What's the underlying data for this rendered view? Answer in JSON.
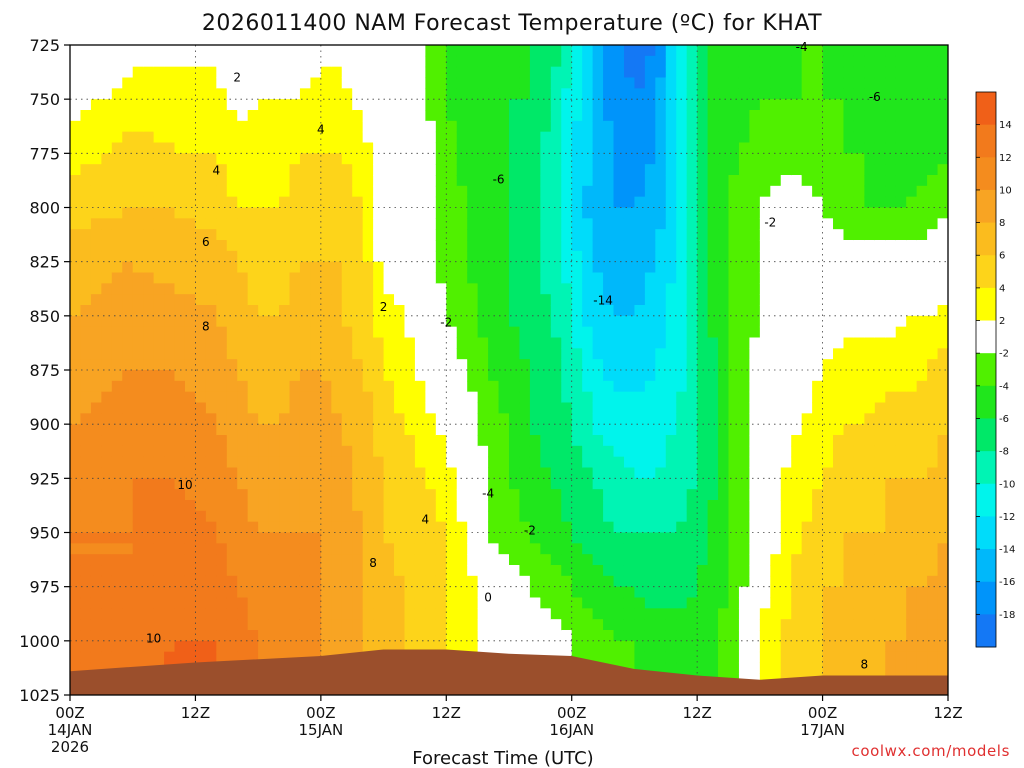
{
  "chart_data": {
    "type": "heatmap",
    "title": "2026011400 NAM Forecast Temperature (ºC) for KHAT",
    "xlabel": "Forecast Time (UTC)",
    "ylabel": "",
    "x_ticks": [
      {
        "hours": 0,
        "label": "00Z",
        "date": "14JAN",
        "year": "2026"
      },
      {
        "hours": 12,
        "label": "12Z",
        "date": "",
        "year": ""
      },
      {
        "hours": 24,
        "label": "00Z",
        "date": "15JAN",
        "year": ""
      },
      {
        "hours": 36,
        "label": "12Z",
        "date": "",
        "year": ""
      },
      {
        "hours": 48,
        "label": "00Z",
        "date": "16JAN",
        "year": ""
      },
      {
        "hours": 60,
        "label": "12Z",
        "date": "",
        "year": ""
      },
      {
        "hours": 72,
        "label": "00Z",
        "date": "17JAN",
        "year": ""
      },
      {
        "hours": 84,
        "label": "12Z",
        "date": "",
        "year": ""
      }
    ],
    "xlim": [
      0,
      84
    ],
    "y_ticks": [
      725,
      750,
      775,
      800,
      825,
      850,
      875,
      900,
      925,
      950,
      975,
      1000,
      1025
    ],
    "ylim": [
      1025,
      725
    ],
    "grid": true,
    "colorbar": {
      "ticks": [
        14,
        12,
        10,
        8,
        6,
        4,
        2,
        -2,
        -4,
        -6,
        -8,
        -10,
        -12,
        -14,
        -16,
        -18
      ],
      "bins": [
        {
          "lo": 14,
          "hi": 16,
          "color": "#f06018"
        },
        {
          "lo": 12,
          "hi": 14,
          "color": "#f27a1c"
        },
        {
          "lo": 10,
          "hi": 12,
          "color": "#f48c1e"
        },
        {
          "lo": 8,
          "hi": 10,
          "color": "#f8a423"
        },
        {
          "lo": 6,
          "hi": 8,
          "color": "#fbbc1e"
        },
        {
          "lo": 4,
          "hi": 6,
          "color": "#fdd41a"
        },
        {
          "lo": 2,
          "hi": 4,
          "color": "#ffff00"
        },
        {
          "lo": -2,
          "hi": 2,
          "color": "#ffffff"
        },
        {
          "lo": -4,
          "hi": -2,
          "color": "#50f000"
        },
        {
          "lo": -6,
          "hi": -4,
          "color": "#20e61c"
        },
        {
          "lo": -8,
          "hi": -6,
          "color": "#00e868"
        },
        {
          "lo": -10,
          "hi": -8,
          "color": "#00f4b4"
        },
        {
          "lo": -12,
          "hi": -10,
          "color": "#00f4ec"
        },
        {
          "lo": -14,
          "hi": -12,
          "color": "#00dcfa"
        },
        {
          "lo": -16,
          "hi": -14,
          "color": "#00b8fa"
        },
        {
          "lo": -18,
          "hi": -16,
          "color": "#0094fa"
        },
        {
          "lo": -20,
          "hi": -18,
          "color": "#1478f5"
        }
      ]
    },
    "series": [
      {
        "time_hours": [
          0,
          6,
          10,
          14,
          16,
          18,
          20,
          22,
          24,
          26,
          28,
          30,
          32,
          34,
          36,
          38,
          40,
          42,
          44,
          46,
          48,
          50,
          52,
          54,
          56,
          58,
          60,
          62,
          64,
          66,
          68,
          70,
          72,
          74,
          76,
          78,
          80,
          82,
          84
        ],
        "note": ""
      }
    ],
    "profiles": [
      {
        "time": 0,
        "temps": [
          -1,
          1,
          3,
          5,
          7,
          8,
          9,
          10,
          11,
          12,
          12,
          13,
          13
        ]
      },
      {
        "time": 6,
        "temps": [
          1,
          3,
          5,
          6,
          8,
          9,
          10,
          11,
          12,
          12,
          12,
          13,
          13
        ]
      },
      {
        "time": 10,
        "temps": [
          1,
          3,
          4,
          6,
          7,
          9,
          10,
          11,
          12,
          13,
          13,
          14,
          15
        ]
      },
      {
        "time": 14,
        "temps": [
          1,
          3,
          4,
          5,
          7,
          8,
          9,
          10,
          11,
          12,
          13,
          14,
          15
        ]
      },
      {
        "time": 16,
        "temps": [
          0,
          1,
          3,
          4,
          6,
          7,
          8,
          9,
          10,
          11,
          12,
          13,
          13
        ]
      },
      {
        "time": 18,
        "temps": [
          0,
          2,
          3,
          4,
          5,
          6,
          7,
          8,
          9,
          10,
          11,
          12,
          12
        ]
      },
      {
        "time": 20,
        "temps": [
          0,
          2,
          3,
          4,
          5,
          6,
          7,
          8,
          9,
          10,
          11,
          11,
          11
        ]
      },
      {
        "time": 22,
        "temps": [
          1,
          2,
          4,
          5,
          6,
          7,
          8,
          9,
          10,
          10,
          11,
          11,
          11
        ]
      },
      {
        "time": 24,
        "temps": [
          1,
          3,
          4,
          5,
          6,
          7,
          8,
          9,
          9,
          10,
          10,
          10,
          10
        ]
      },
      {
        "time": 26,
        "temps": [
          1,
          3,
          4,
          5,
          6,
          6,
          7,
          8,
          9,
          9,
          9,
          9,
          9
        ]
      },
      {
        "time": 28,
        "temps": [
          0,
          1,
          3,
          4,
          5,
          5,
          6,
          7,
          7,
          8,
          8,
          8,
          8
        ]
      },
      {
        "time": 30,
        "temps": [
          -1,
          0,
          0,
          1,
          1,
          3,
          4,
          5,
          6,
          6,
          7,
          7,
          7
        ]
      },
      {
        "time": 32,
        "temps": [
          -2,
          -1,
          0,
          0,
          0,
          2,
          3,
          4,
          5,
          5,
          6,
          6,
          6
        ]
      },
      {
        "time": 34,
        "temps": [
          -2,
          -2,
          -1,
          -1,
          -1,
          0,
          1,
          3,
          4,
          5,
          5,
          5,
          5
        ]
      },
      {
        "time": 36,
        "temps": [
          -4,
          -4,
          -3,
          -3,
          -3,
          -2,
          -1,
          1,
          3,
          4,
          4,
          4,
          4
        ]
      },
      {
        "time": 38,
        "temps": [
          -5,
          -5,
          -5,
          -4,
          -4,
          -3,
          -2,
          -1,
          0,
          2,
          3,
          3,
          3
        ]
      },
      {
        "time": 40,
        "temps": [
          -5,
          -5,
          -6,
          -5,
          -5,
          -5,
          -4,
          -3,
          -2,
          -2,
          0,
          1,
          1
        ]
      },
      {
        "time": 42,
        "temps": [
          -5,
          -6,
          -6,
          -6,
          -6,
          -6,
          -5,
          -4,
          -4,
          -3,
          -1,
          0,
          0
        ]
      },
      {
        "time": 44,
        "temps": [
          -6,
          -6,
          -7,
          -7,
          -7,
          -7,
          -6,
          -6,
          -5,
          -4,
          -2,
          0,
          0
        ]
      },
      {
        "time": 46,
        "temps": [
          -7,
          -8,
          -9,
          -9,
          -9,
          -8,
          -7,
          -7,
          -6,
          -5,
          -3,
          -1,
          -1
        ]
      },
      {
        "time": 48,
        "temps": [
          -9,
          -11,
          -12,
          -12,
          -11,
          -10,
          -9,
          -8,
          -7,
          -6,
          -4,
          -2,
          -2
        ]
      },
      {
        "time": 50,
        "temps": [
          -13,
          -14,
          -14,
          -15,
          -14,
          -13,
          -11,
          -10,
          -8,
          -7,
          -5,
          -3,
          -3
        ]
      },
      {
        "time": 52,
        "temps": [
          -17,
          -17,
          -16,
          -16,
          -15,
          -14,
          -13,
          -11,
          -9,
          -8,
          -6,
          -4,
          -4
        ]
      },
      {
        "time": 54,
        "temps": [
          -19,
          -18,
          -17,
          -16,
          -15,
          -14,
          -13,
          -11,
          -10,
          -8,
          -6,
          -4,
          -4
        ]
      },
      {
        "time": 56,
        "temps": [
          -18,
          -17,
          -16,
          -15,
          -14,
          -13,
          -12,
          -11,
          -10,
          -8,
          -7,
          -5,
          -5
        ]
      },
      {
        "time": 58,
        "temps": [
          -12,
          -12,
          -12,
          -12,
          -12,
          -11,
          -11,
          -10,
          -9,
          -8,
          -7,
          -5,
          -5
        ]
      },
      {
        "time": 60,
        "temps": [
          -7,
          -7,
          -8,
          -8,
          -8,
          -8,
          -8,
          -8,
          -8,
          -7,
          -6,
          -5,
          -5
        ]
      },
      {
        "time": 62,
        "temps": [
          -5,
          -5,
          -5,
          -5,
          -5,
          -5,
          -6,
          -6,
          -6,
          -5,
          -5,
          -4,
          -4
        ]
      },
      {
        "time": 64,
        "temps": [
          -5,
          -5,
          -4,
          -3,
          -3,
          -3,
          -3,
          -3,
          -3,
          -3,
          -3,
          -2,
          -2
        ]
      },
      {
        "time": 66,
        "temps": [
          -5,
          -4,
          -3,
          -2,
          -2,
          -2,
          -1,
          -1,
          0,
          0,
          1,
          2,
          2
        ]
      },
      {
        "time": 68,
        "temps": [
          -5,
          -4,
          -3,
          -1,
          -1,
          0,
          0,
          1,
          2,
          2,
          3,
          4,
          4
        ]
      },
      {
        "time": 70,
        "temps": [
          -4,
          -4,
          -3,
          -1,
          0,
          0,
          1,
          2,
          3,
          4,
          5,
          5,
          5
        ]
      },
      {
        "time": 72,
        "temps": [
          -4,
          -4,
          -3,
          -2,
          0,
          0,
          2,
          3,
          4,
          5,
          6,
          6,
          6
        ]
      },
      {
        "time": 74,
        "temps": [
          -5,
          -4,
          -4,
          -3,
          -1,
          1,
          3,
          4,
          5,
          6,
          6,
          7,
          7
        ]
      },
      {
        "time": 76,
        "temps": [
          -4,
          -5,
          -4,
          -4,
          -1,
          1,
          3,
          4,
          5,
          6,
          7,
          7,
          7
        ]
      },
      {
        "time": 78,
        "temps": [
          -4,
          -5,
          -5,
          -4,
          -1,
          1,
          3,
          5,
          6,
          6,
          7,
          8,
          8
        ]
      },
      {
        "time": 80,
        "temps": [
          -4,
          -6,
          -6,
          -4,
          -1,
          2,
          3,
          5,
          6,
          7,
          8,
          8,
          8
        ]
      },
      {
        "time": 82,
        "temps": [
          -4,
          -5,
          -5,
          -3,
          -1,
          2,
          4,
          5,
          6,
          7,
          8,
          9,
          9
        ]
      },
      {
        "time": 84,
        "temps": [
          -4,
          -5,
          -4,
          -2,
          0,
          3,
          5,
          6,
          7,
          8,
          9,
          10,
          10
        ]
      }
    ],
    "surface_pressure": [
      {
        "time": 0,
        "p": 1014
      },
      {
        "time": 12,
        "p": 1010
      },
      {
        "time": 24,
        "p": 1007
      },
      {
        "time": 30,
        "p": 1004
      },
      {
        "time": 36,
        "p": 1004
      },
      {
        "time": 42,
        "p": 1006
      },
      {
        "time": 48,
        "p": 1007
      },
      {
        "time": 54,
        "p": 1013
      },
      {
        "time": 60,
        "p": 1016
      },
      {
        "time": 66,
        "p": 1018
      },
      {
        "time": 72,
        "p": 1016
      },
      {
        "time": 84,
        "p": 1016
      }
    ],
    "contour_labels": [
      {
        "text": "2",
        "time": 16,
        "p": 740
      },
      {
        "text": "4",
        "time": 14,
        "p": 783
      },
      {
        "text": "4",
        "time": 24,
        "p": 764
      },
      {
        "text": "6",
        "time": 13,
        "p": 816
      },
      {
        "text": "8",
        "time": 13,
        "p": 855
      },
      {
        "text": "10",
        "time": 11,
        "p": 928
      },
      {
        "text": "10",
        "time": 8,
        "p": 999
      },
      {
        "text": "2",
        "time": 30,
        "p": 846
      },
      {
        "text": "-2",
        "time": 36,
        "p": 853
      },
      {
        "text": "4",
        "time": 34,
        "p": 944
      },
      {
        "text": "8",
        "time": 29,
        "p": 964
      },
      {
        "text": "-4",
        "time": 40,
        "p": 932
      },
      {
        "text": "-2",
        "time": 44,
        "p": 949
      },
      {
        "text": "0",
        "time": 40,
        "p": 980
      },
      {
        "text": "-6",
        "time": 41,
        "p": 787
      },
      {
        "text": "-14",
        "time": 51,
        "p": 843
      },
      {
        "text": "-4",
        "time": 70,
        "p": 726
      },
      {
        "text": "-6",
        "time": 77,
        "p": 749
      },
      {
        "text": "-2",
        "time": 67,
        "p": 807
      },
      {
        "text": "8",
        "time": 76,
        "p": 1011
      }
    ]
  },
  "page": {
    "credit": "coolwx.com/models"
  }
}
